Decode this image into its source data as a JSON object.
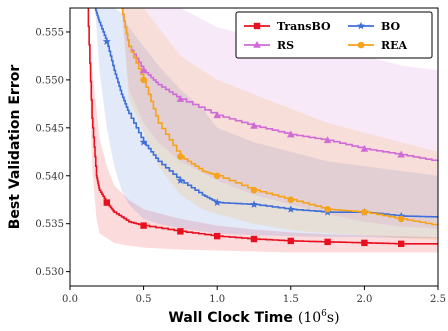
{
  "chart_data": {
    "type": "line",
    "xlabel": "Wall Clock Time",
    "xlabel_unit_base": "(10",
    "xlabel_unit_exp": "6",
    "xlabel_unit_tail": "s)",
    "ylabel": "Best Validation Error",
    "xlim": [
      0.0,
      2.5
    ],
    "ylim": [
      0.5285,
      0.5575
    ],
    "x_ticks": [
      "0.0",
      "0.5",
      "1.0",
      "1.5",
      "2.0",
      "2.5"
    ],
    "y_ticks": [
      "0.530",
      "0.535",
      "0.540",
      "0.545",
      "0.550",
      "0.555"
    ],
    "grid": false,
    "legend_position": "top-right",
    "series": [
      {
        "name": "TransBO",
        "color": "#e8101e",
        "marker": "square",
        "x": [
          0.12,
          0.15,
          0.18,
          0.2,
          0.25,
          0.3,
          0.4,
          0.5,
          0.75,
          1.0,
          1.25,
          1.5,
          1.75,
          2.0,
          2.25,
          2.5
        ],
        "y": [
          0.5575,
          0.546,
          0.54,
          0.5385,
          0.5372,
          0.5362,
          0.5352,
          0.5348,
          0.5342,
          0.5337,
          0.5334,
          0.5332,
          0.5331,
          0.533,
          0.5329,
          0.5329
        ],
        "band_upper": [
          0.5575,
          0.551,
          0.547,
          0.544,
          0.541,
          0.539,
          0.5375,
          0.5365,
          0.5355,
          0.5348,
          0.5344,
          0.5341,
          0.5339,
          0.5338,
          0.5337,
          0.5336
        ],
        "band_lower": [
          0.5575,
          0.541,
          0.5355,
          0.534,
          0.5335,
          0.533,
          0.5327,
          0.5325,
          0.5323,
          0.5322,
          0.5321,
          0.532,
          0.532,
          0.532,
          0.532,
          0.532
        ]
      },
      {
        "name": "BO",
        "color": "#3f6fd8",
        "marker": "star",
        "x": [
          0.17,
          0.2,
          0.25,
          0.3,
          0.35,
          0.4,
          0.5,
          0.6,
          0.75,
          0.9,
          1.0,
          1.25,
          1.5,
          1.75,
          2.0,
          2.25,
          2.5
        ],
        "y": [
          0.5575,
          0.556,
          0.554,
          0.551,
          0.5485,
          0.5465,
          0.5435,
          0.5415,
          0.5395,
          0.538,
          0.5372,
          0.537,
          0.5365,
          0.5362,
          0.5362,
          0.5358,
          0.5357
        ],
        "band_upper": [
          0.5575,
          0.5575,
          0.5575,
          0.5575,
          0.557,
          0.5555,
          0.5535,
          0.5515,
          0.549,
          0.547,
          0.545,
          0.5435,
          0.5425,
          0.5415,
          0.541,
          0.5405,
          0.54
        ],
        "band_lower": [
          0.5575,
          0.551,
          0.545,
          0.541,
          0.5385,
          0.537,
          0.5355,
          0.535,
          0.5345,
          0.5342,
          0.534,
          0.5338,
          0.5337,
          0.5336,
          0.5336,
          0.5335,
          0.5335
        ]
      },
      {
        "name": "RS",
        "color": "#d06ad6",
        "marker": "triangle",
        "x": [
          0.35,
          0.4,
          0.5,
          0.6,
          0.75,
          1.0,
          1.25,
          1.5,
          1.75,
          2.0,
          2.25,
          2.5
        ],
        "y": [
          0.5575,
          0.5535,
          0.551,
          0.5495,
          0.548,
          0.5463,
          0.5452,
          0.5443,
          0.5437,
          0.5428,
          0.5422,
          0.5415
        ],
        "band_upper": [
          0.5575,
          0.5575,
          0.5575,
          0.5575,
          0.5575,
          0.5555,
          0.5545,
          0.5538,
          0.553,
          0.5525,
          0.5515,
          0.551
        ],
        "band_lower": [
          0.5575,
          0.549,
          0.5455,
          0.5435,
          0.5415,
          0.5395,
          0.538,
          0.537,
          0.536,
          0.5352,
          0.5347,
          0.5345
        ]
      },
      {
        "name": "REA",
        "color": "#f7a21b",
        "marker": "circle",
        "x": [
          0.35,
          0.4,
          0.5,
          0.6,
          0.75,
          0.9,
          1.0,
          1.25,
          1.5,
          1.75,
          2.0,
          2.25,
          2.5
        ],
        "y": [
          0.5575,
          0.5535,
          0.55,
          0.5455,
          0.542,
          0.5405,
          0.54,
          0.5385,
          0.5375,
          0.5365,
          0.5362,
          0.5355,
          0.5348
        ],
        "band_upper": [
          0.5575,
          0.5575,
          0.5575,
          0.5555,
          0.5525,
          0.551,
          0.55,
          0.5485,
          0.547,
          0.5455,
          0.5445,
          0.5435,
          0.5425
        ],
        "band_lower": [
          0.5575,
          0.548,
          0.5445,
          0.541,
          0.538,
          0.5365,
          0.536,
          0.535,
          0.5343,
          0.534,
          0.5338,
          0.5335,
          0.5333
        ]
      }
    ]
  }
}
